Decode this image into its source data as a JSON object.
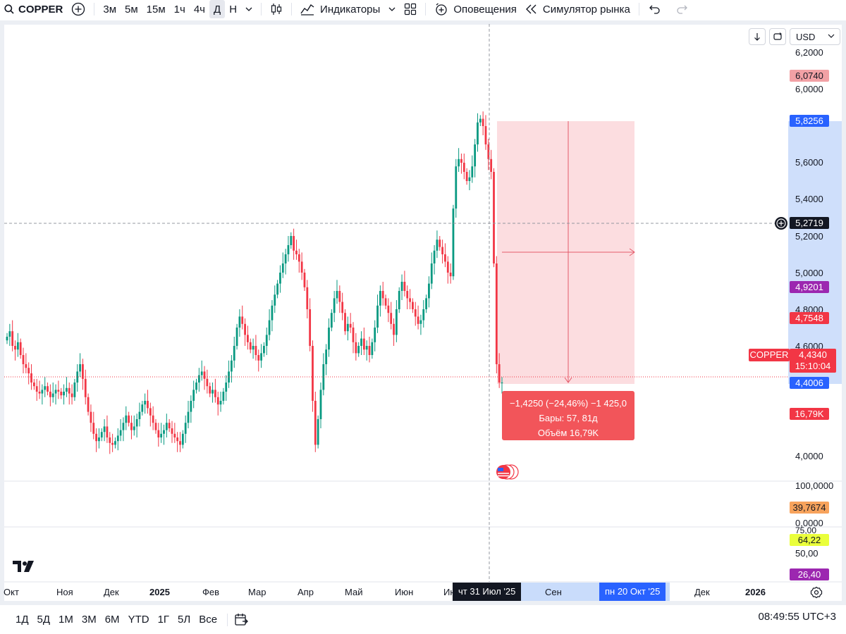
{
  "toolbar": {
    "symbol": "COPPER",
    "intervals": [
      "3м",
      "5м",
      "15м",
      "1ч",
      "4ч",
      "Д",
      "Н"
    ],
    "active_interval": "Д",
    "indicators_label": "Индикаторы",
    "alerts_label": "Оповещения",
    "simulator_label": "Симулятор рынка"
  },
  "currency": "USD",
  "chart_data": {
    "type": "candlestick",
    "symbol": "COPPER",
    "interval": "Д",
    "price_axis_ticks": [
      "6,2000",
      "6,0000",
      "5,6000",
      "5,4000",
      "5,2000",
      "5,0000",
      "4,8000",
      "4,6000",
      "4,0000"
    ],
    "ylim": [
      3.8,
      6.25
    ],
    "indicator_axis_ticks": [
      "100,0000",
      "0,0000",
      "75,00",
      "50,00"
    ],
    "time_axis_labels": [
      "Окт",
      "Ноя",
      "Дек",
      "2025",
      "Фев",
      "Мар",
      "Апр",
      "Май",
      "Июн",
      "Ию",
      "Сен",
      "Дек",
      "2026"
    ],
    "crosshair_time": "чт 31 Июл '25",
    "range_end_time": "пн 20 Окт '25",
    "crosshair_price": "5,2719",
    "last_price": "4,4340",
    "countdown": "15:10:04",
    "price_labels": {
      "high_marker": "6,0740",
      "range_top": "5,8256",
      "label_a": "4,9201",
      "label_b": "4,7548",
      "range_bottom": "4,4006",
      "volume": "16,79K",
      "indicator_a": "39,7674",
      "indicator_b": "64,22",
      "indicator_c": "26,40"
    },
    "measure": {
      "line1": "−1,4250 (−24,46%) −1 425,0",
      "line2": "Бары: 57, 81д",
      "line3": "Объём 16,79K",
      "from_price": 5.8256,
      "to_price": 4.4006
    },
    "series_close": [
      4.65,
      4.68,
      4.6,
      4.58,
      4.62,
      4.55,
      4.5,
      4.48,
      4.45,
      4.4,
      4.38,
      4.35,
      4.34,
      4.36,
      4.38,
      4.35,
      4.32,
      4.34,
      4.36,
      4.35,
      4.33,
      4.35,
      4.37,
      4.34,
      4.32,
      4.4,
      4.46,
      4.5,
      4.42,
      4.32,
      4.24,
      4.18,
      4.12,
      4.08,
      4.1,
      4.13,
      4.16,
      4.1,
      4.07,
      4.06,
      4.08,
      4.11,
      4.14,
      4.18,
      4.22,
      4.18,
      4.14,
      4.16,
      4.2,
      4.24,
      4.28,
      4.3,
      4.26,
      4.22,
      4.18,
      4.14,
      4.1,
      4.12,
      4.14,
      4.18,
      4.15,
      4.12,
      4.1,
      4.08,
      4.06,
      4.12,
      4.18,
      4.24,
      4.3,
      4.36,
      4.4,
      4.44,
      4.46,
      4.42,
      4.38,
      4.34,
      4.36,
      4.32,
      4.28,
      4.3,
      4.35,
      4.4,
      4.46,
      4.52,
      4.6,
      4.7,
      4.76,
      4.72,
      4.66,
      4.62,
      4.58,
      4.6,
      4.55,
      4.52,
      4.56,
      4.6,
      4.66,
      4.74,
      4.82,
      4.88,
      4.94,
      5.0,
      5.05,
      5.1,
      5.15,
      5.2,
      5.12,
      5.1,
      5.06,
      5.0,
      4.92,
      4.8,
      4.6,
      4.3,
      4.06,
      4.2,
      4.36,
      4.5,
      4.58,
      4.7,
      4.78,
      4.86,
      4.9,
      4.84,
      4.78,
      4.68,
      4.72,
      4.7,
      4.62,
      4.56,
      4.6,
      4.64,
      4.58,
      4.6,
      4.55,
      4.62,
      4.7,
      4.82,
      4.9,
      4.86,
      4.82,
      4.78,
      4.72,
      4.66,
      4.8,
      4.9,
      4.95,
      4.9,
      4.86,
      4.84,
      4.8,
      4.76,
      4.72,
      4.74,
      4.8,
      4.86,
      4.94,
      5.05,
      5.12,
      5.18,
      5.14,
      5.1,
      5.06,
      5.0,
      4.98,
      5.35,
      5.58,
      5.62,
      5.6,
      5.55,
      5.5,
      5.52,
      5.58,
      5.7,
      5.82,
      5.84,
      5.8,
      5.7,
      5.62,
      5.55,
      5.05,
      4.5,
      4.4,
      4.4
    ]
  },
  "range_selector": [
    "1Д",
    "5Д",
    "1М",
    "3М",
    "6М",
    "YTD",
    "1Г",
    "5Л",
    "Все"
  ],
  "clock": "08:49:55 UTC+3"
}
